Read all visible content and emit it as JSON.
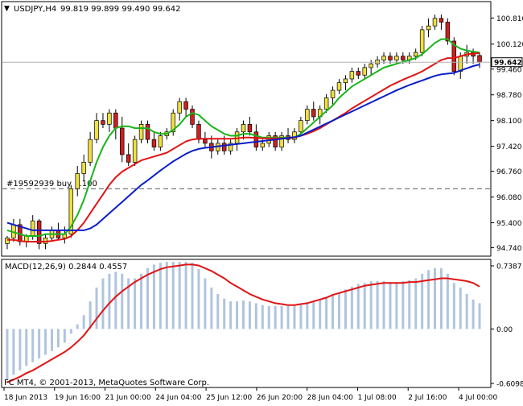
{
  "header": {
    "title": "USDJPY,H4",
    "ohlc": "99.819 99.899 99.490 99.642",
    "dropdown_glyph": "▼"
  },
  "order_label": "#19592939 buy 1.100",
  "current_price_label": "99.642",
  "macd_header": "MACD(12,26,9) 0.2844 0.4557",
  "copyright": "FC MT4, © 2001-2013, MetaQuotes Software Corp.",
  "colors": {
    "background": "#ffffff",
    "frame": "#000000",
    "candle_up": "#f0e040",
    "candle_down": "#cc1f1f",
    "ma_fast": "#19b419",
    "ma_mid": "#e01414",
    "ma_slow": "#0a1ec8",
    "macd_hist": "#b0c4de",
    "macd_signal": "#e01414",
    "price_tag": "#ffffff"
  },
  "chart_data": [
    {
      "type": "candlestick",
      "symbol": "USDJPY",
      "timeframe": "H4",
      "ylim": [
        94.56,
        101.2
      ],
      "y_ticks": [
        "100.810",
        "100.120",
        "99.460",
        "98.780",
        "98.100",
        "97.420",
        "96.760",
        "96.080",
        "95.400",
        "94.740"
      ],
      "x_ticks": [
        "18 Jun 2013",
        "19 Jun 16:00",
        "21 Jun 00:00",
        "24 Jun 04:00",
        "25 Jun 12:00",
        "26 Jun 20:00",
        "28 Jun 04:00",
        "1 Jul 08:00",
        "2 Jul 16:00",
        "4 Jul 00:00"
      ],
      "order_line_price": 96.3,
      "current_price": 99.642,
      "ohlc": [
        [
          94.85,
          95.05,
          94.7,
          95.0
        ],
        [
          95.0,
          95.5,
          94.9,
          95.35
        ],
        [
          95.35,
          95.5,
          94.8,
          94.9
        ],
        [
          94.9,
          95.1,
          94.75,
          95.05
        ],
        [
          95.05,
          95.6,
          94.95,
          95.45
        ],
        [
          95.45,
          95.5,
          94.7,
          94.85
        ],
        [
          94.85,
          95.1,
          94.7,
          95.0
        ],
        [
          95.0,
          95.3,
          94.9,
          95.2
        ],
        [
          95.2,
          95.4,
          94.95,
          95.0
        ],
        [
          95.0,
          95.3,
          94.85,
          95.1
        ],
        [
          95.1,
          96.4,
          95.0,
          96.3
        ],
        [
          96.3,
          96.9,
          96.1,
          96.7
        ],
        [
          96.7,
          97.2,
          96.5,
          97.0
        ],
        [
          97.0,
          97.8,
          96.9,
          97.6
        ],
        [
          97.6,
          98.3,
          97.5,
          98.1
        ],
        [
          98.1,
          98.3,
          97.9,
          98.0
        ],
        [
          98.0,
          98.4,
          97.8,
          98.3
        ],
        [
          98.3,
          98.4,
          97.6,
          97.9
        ],
        [
          97.9,
          98.2,
          97.0,
          97.2
        ],
        [
          97.2,
          97.5,
          96.9,
          97.0
        ],
        [
          97.0,
          97.7,
          96.9,
          97.6
        ],
        [
          97.6,
          98.1,
          97.5,
          98.0
        ],
        [
          98.0,
          98.1,
          97.5,
          97.6
        ],
        [
          97.6,
          97.8,
          97.3,
          97.4
        ],
        [
          97.4,
          97.8,
          97.3,
          97.7
        ],
        [
          97.7,
          97.9,
          97.6,
          97.8
        ],
        [
          97.8,
          98.4,
          97.7,
          98.3
        ],
        [
          98.3,
          98.7,
          98.1,
          98.6
        ],
        [
          98.6,
          98.7,
          98.2,
          98.4
        ],
        [
          98.4,
          98.5,
          97.9,
          98.0
        ],
        [
          98.0,
          98.1,
          97.5,
          97.6
        ],
        [
          97.6,
          97.8,
          97.4,
          97.5
        ],
        [
          97.5,
          97.7,
          97.1,
          97.3
        ],
        [
          97.3,
          97.6,
          97.2,
          97.5
        ],
        [
          97.5,
          97.7,
          97.2,
          97.3
        ],
        [
          97.3,
          97.6,
          97.2,
          97.5
        ],
        [
          97.5,
          97.9,
          97.3,
          97.8
        ],
        [
          97.8,
          98.1,
          97.6,
          98.0
        ],
        [
          98.0,
          98.2,
          97.7,
          97.8
        ],
        [
          97.8,
          98.0,
          97.3,
          97.4
        ],
        [
          97.4,
          97.6,
          97.3,
          97.5
        ],
        [
          97.5,
          97.8,
          97.4,
          97.7
        ],
        [
          97.7,
          97.8,
          97.3,
          97.4
        ],
        [
          97.4,
          97.8,
          97.3,
          97.7
        ],
        [
          97.7,
          97.9,
          97.5,
          97.6
        ],
        [
          97.6,
          97.9,
          97.5,
          97.8
        ],
        [
          97.8,
          98.2,
          97.7,
          98.1
        ],
        [
          98.1,
          98.5,
          98.0,
          98.4
        ],
        [
          98.4,
          98.6,
          98.1,
          98.2
        ],
        [
          98.2,
          98.5,
          98.0,
          98.4
        ],
        [
          98.4,
          98.8,
          98.3,
          98.7
        ],
        [
          98.7,
          99.0,
          98.5,
          98.9
        ],
        [
          98.9,
          99.2,
          98.8,
          99.1
        ],
        [
          99.1,
          99.3,
          98.9,
          99.2
        ],
        [
          99.2,
          99.5,
          99.1,
          99.4
        ],
        [
          99.4,
          99.5,
          99.2,
          99.3
        ],
        [
          99.3,
          99.6,
          99.2,
          99.5
        ],
        [
          99.5,
          99.7,
          99.3,
          99.6
        ],
        [
          99.6,
          99.8,
          99.5,
          99.7
        ],
        [
          99.7,
          99.9,
          99.6,
          99.8
        ],
        [
          99.8,
          99.9,
          99.6,
          99.7
        ],
        [
          99.7,
          99.9,
          99.6,
          99.8
        ],
        [
          99.8,
          99.9,
          99.6,
          99.7
        ],
        [
          99.7,
          99.9,
          99.6,
          99.8
        ],
        [
          99.8,
          100.0,
          99.7,
          99.9
        ],
        [
          99.9,
          100.6,
          99.8,
          100.5
        ],
        [
          100.5,
          100.8,
          100.3,
          100.6
        ],
        [
          100.6,
          100.9,
          100.5,
          100.8
        ],
        [
          100.8,
          100.9,
          100.5,
          100.7
        ],
        [
          100.7,
          100.8,
          100.1,
          100.2
        ],
        [
          100.2,
          100.3,
          99.3,
          99.4
        ],
        [
          99.4,
          99.9,
          99.2,
          99.8
        ],
        [
          99.8,
          100.1,
          99.6,
          99.9
        ],
        [
          99.9,
          100.0,
          99.6,
          99.8
        ],
        [
          99.819,
          99.899,
          99.49,
          99.642
        ]
      ],
      "series": [
        {
          "name": "",
          "color_key": "ma_fast",
          "values": [
            95.2,
            95.15,
            95.1,
            95.05,
            95.05,
            95.05,
            95.1,
            95.1,
            95.1,
            95.1,
            95.3,
            95.6,
            96.0,
            96.5,
            97.0,
            97.4,
            97.7,
            97.9,
            97.95,
            97.95,
            97.9,
            97.9,
            97.9,
            97.8,
            97.75,
            97.75,
            97.85,
            98.0,
            98.2,
            98.3,
            98.25,
            98.1,
            97.95,
            97.85,
            97.75,
            97.7,
            97.7,
            97.75,
            97.75,
            97.7,
            97.65,
            97.65,
            97.65,
            97.65,
            97.65,
            97.65,
            97.75,
            97.9,
            98.05,
            98.2,
            98.35,
            98.5,
            98.7,
            98.85,
            99.0,
            99.1,
            99.2,
            99.3,
            99.4,
            99.5,
            99.55,
            99.6,
            99.65,
            99.7,
            99.75,
            99.85,
            100.0,
            100.15,
            100.25,
            100.25,
            100.1,
            100.0,
            99.95,
            99.92,
            99.9
          ]
        },
        {
          "name": "",
          "color_key": "ma_mid",
          "values": [
            94.95,
            94.95,
            94.92,
            94.9,
            94.9,
            94.9,
            94.9,
            94.92,
            94.95,
            94.97,
            95.05,
            95.2,
            95.4,
            95.65,
            95.9,
            96.15,
            96.4,
            96.6,
            96.75,
            96.85,
            96.95,
            97.05,
            97.1,
            97.15,
            97.2,
            97.25,
            97.35,
            97.45,
            97.55,
            97.6,
            97.62,
            97.62,
            97.62,
            97.62,
            97.62,
            97.62,
            97.63,
            97.65,
            97.65,
            97.64,
            97.63,
            97.63,
            97.63,
            97.63,
            97.63,
            97.65,
            97.7,
            97.75,
            97.82,
            97.9,
            98.0,
            98.1,
            98.2,
            98.3,
            98.42,
            98.52,
            98.62,
            98.72,
            98.82,
            98.92,
            99.02,
            99.1,
            99.18,
            99.25,
            99.32,
            99.4,
            99.5,
            99.6,
            99.7,
            99.75,
            99.75,
            99.8,
            99.85,
            99.87,
            99.88
          ]
        },
        {
          "name": "",
          "color_key": "ma_slow",
          "values": [
            95.4,
            95.35,
            95.3,
            95.25,
            95.2,
            95.2,
            95.2,
            95.2,
            95.2,
            95.2,
            95.2,
            95.2,
            95.2,
            95.25,
            95.35,
            95.5,
            95.65,
            95.8,
            95.95,
            96.1,
            96.25,
            96.4,
            96.52,
            96.65,
            96.78,
            96.9,
            97.02,
            97.12,
            97.22,
            97.3,
            97.35,
            97.38,
            97.4,
            97.42,
            97.44,
            97.46,
            97.48,
            97.5,
            97.52,
            97.54,
            97.56,
            97.58,
            97.6,
            97.62,
            97.64,
            97.66,
            97.7,
            97.78,
            97.86,
            97.94,
            98.02,
            98.1,
            98.18,
            98.26,
            98.34,
            98.42,
            98.5,
            98.58,
            98.66,
            98.74,
            98.82,
            98.9,
            98.97,
            99.04,
            99.1,
            99.16,
            99.22,
            99.28,
            99.32,
            99.34,
            99.36,
            99.42,
            99.48,
            99.54,
            99.58
          ]
        }
      ]
    },
    {
      "type": "bar",
      "title": "MACD(12,26,9) 0.2844 0.4557",
      "ylim": [
        -0.6098,
        0.7387
      ],
      "y_ticks": [
        "0.7387",
        "0.00",
        "-0.6098"
      ],
      "values": [
        -0.55,
        -0.5,
        -0.45,
        -0.4,
        -0.36,
        -0.32,
        -0.28,
        -0.24,
        -0.2,
        -0.15,
        -0.05,
        0.05,
        0.15,
        0.3,
        0.45,
        0.55,
        0.6,
        0.62,
        0.6,
        0.55,
        0.55,
        0.6,
        0.66,
        0.7,
        0.72,
        0.73,
        0.73,
        0.73,
        0.73,
        0.72,
        0.65,
        0.55,
        0.45,
        0.38,
        0.33,
        0.3,
        0.3,
        0.31,
        0.3,
        0.28,
        0.26,
        0.25,
        0.25,
        0.25,
        0.25,
        0.25,
        0.26,
        0.28,
        0.3,
        0.32,
        0.35,
        0.38,
        0.4,
        0.43,
        0.46,
        0.49,
        0.5,
        0.52,
        0.52,
        0.52,
        0.51,
        0.51,
        0.52,
        0.53,
        0.55,
        0.6,
        0.64,
        0.66,
        0.66,
        0.6,
        0.5,
        0.45,
        0.38,
        0.32,
        0.28
      ],
      "series": [
        {
          "name": "",
          "color_key": "macd_signal",
          "values": [
            -0.58,
            -0.55,
            -0.52,
            -0.48,
            -0.45,
            -0.41,
            -0.37,
            -0.33,
            -0.29,
            -0.25,
            -0.2,
            -0.14,
            -0.07,
            0.02,
            0.11,
            0.2,
            0.28,
            0.35,
            0.41,
            0.46,
            0.51,
            0.55,
            0.59,
            0.62,
            0.65,
            0.67,
            0.68,
            0.69,
            0.7,
            0.7,
            0.69,
            0.66,
            0.63,
            0.59,
            0.55,
            0.5,
            0.46,
            0.42,
            0.38,
            0.35,
            0.32,
            0.3,
            0.28,
            0.27,
            0.26,
            0.26,
            0.27,
            0.28,
            0.3,
            0.32,
            0.34,
            0.37,
            0.39,
            0.41,
            0.43,
            0.45,
            0.47,
            0.48,
            0.49,
            0.5,
            0.5,
            0.5,
            0.5,
            0.51,
            0.51,
            0.52,
            0.53,
            0.54,
            0.55,
            0.55,
            0.54,
            0.53,
            0.52,
            0.5,
            0.46
          ]
        }
      ]
    }
  ]
}
